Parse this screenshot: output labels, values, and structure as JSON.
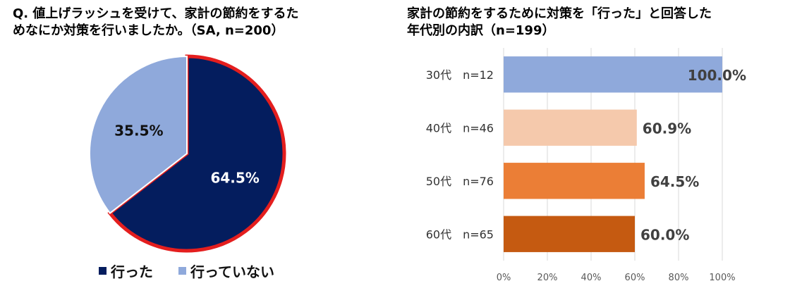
{
  "left_chart": {
    "title": "Q. 値上げラッシュを受けて、家計の節約をするた\nめなにか対策を行いましたか。（SA, n=200）"
  },
  "right_chart": {
    "title": "家計の節約をするために対策を「行った」と回答した\n年代別の内訳（n=199）"
  },
  "chart_data": [
    {
      "type": "pie",
      "title": "Q. 値上げラッシュを受けて、家計の節約をするためなにか対策を行いましたか。（SA, n=200）",
      "categories": [
        "行った",
        "行っていない"
      ],
      "values": [
        64.5,
        35.5
      ],
      "labels": [
        "64.5%",
        "35.5%"
      ],
      "colors": [
        "#041D5E",
        "#8FA9DB"
      ],
      "highlight": "行った",
      "highlight_color": "#E41E1E",
      "legend": "bottom"
    },
    {
      "type": "bar",
      "orientation": "horizontal",
      "title": "家計の節約をするために対策を「行った」と回答した年代別の内訳（n=199）",
      "categories": [
        "30代　n=12",
        "40代　n=46",
        "50代　n=76",
        "60代　n=65"
      ],
      "values": [
        100.0,
        60.9,
        64.5,
        60.0
      ],
      "labels": [
        "100.0%",
        "60.9%",
        "64.5%",
        "60.0%"
      ],
      "colors": [
        "#8FA9DB",
        "#F5C9AC",
        "#EB7E36",
        "#C55A11"
      ],
      "xlim": [
        0,
        100
      ],
      "ticks": [
        0,
        20,
        40,
        60,
        80,
        100
      ],
      "tick_labels": [
        "0%",
        "20%",
        "40%",
        "60%",
        "80%",
        "100%"
      ],
      "grid": true
    }
  ]
}
